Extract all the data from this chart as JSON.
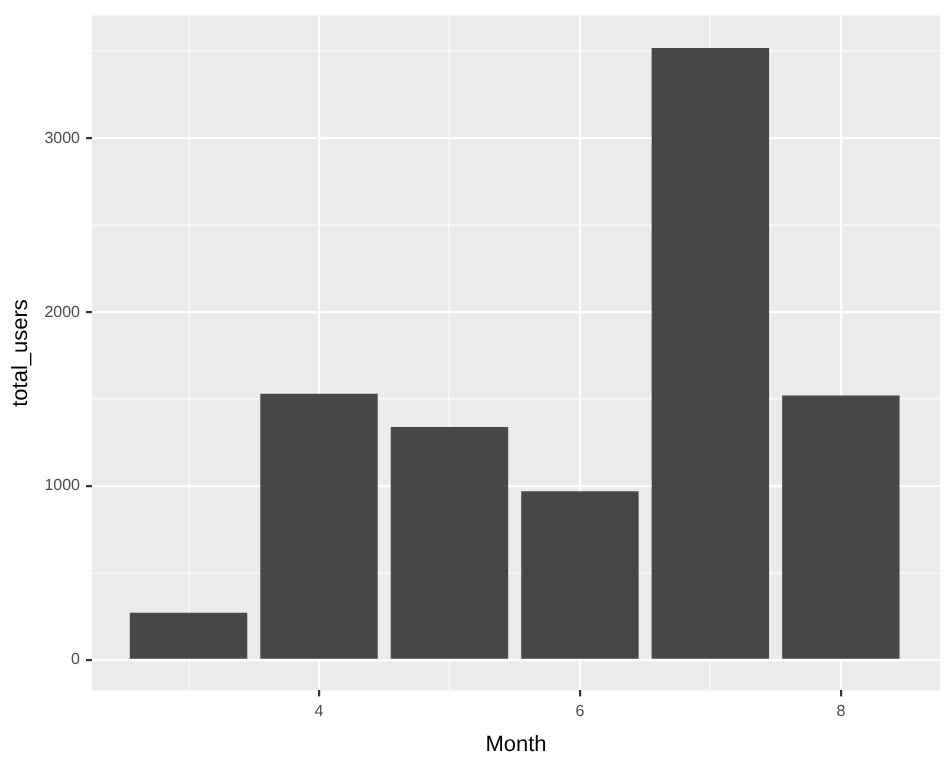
{
  "chart_data": {
    "type": "bar",
    "xlabel": "Month",
    "ylabel": "total_users",
    "x": [
      3,
      4,
      5,
      6,
      7,
      8
    ],
    "values": [
      270,
      1530,
      1340,
      970,
      3520,
      1520
    ],
    "color": "#474747",
    "xlim": [
      2.26,
      8.76
    ],
    "xticks": [
      {
        "value": 3,
        "label": null
      },
      4,
      {
        "value": 5,
        "label": null
      },
      6,
      {
        "value": 7,
        "label": null
      },
      8
    ],
    "ylim": [
      -176,
      3706
    ],
    "yticks": [
      0,
      {
        "value": 500,
        "label": null
      },
      1000,
      {
        "value": 1500,
        "label": null
      },
      2000,
      {
        "value": 2500,
        "label": null
      },
      3000,
      {
        "value": 3500,
        "label": null
      }
    ],
    "grid": true,
    "legend": false
  }
}
